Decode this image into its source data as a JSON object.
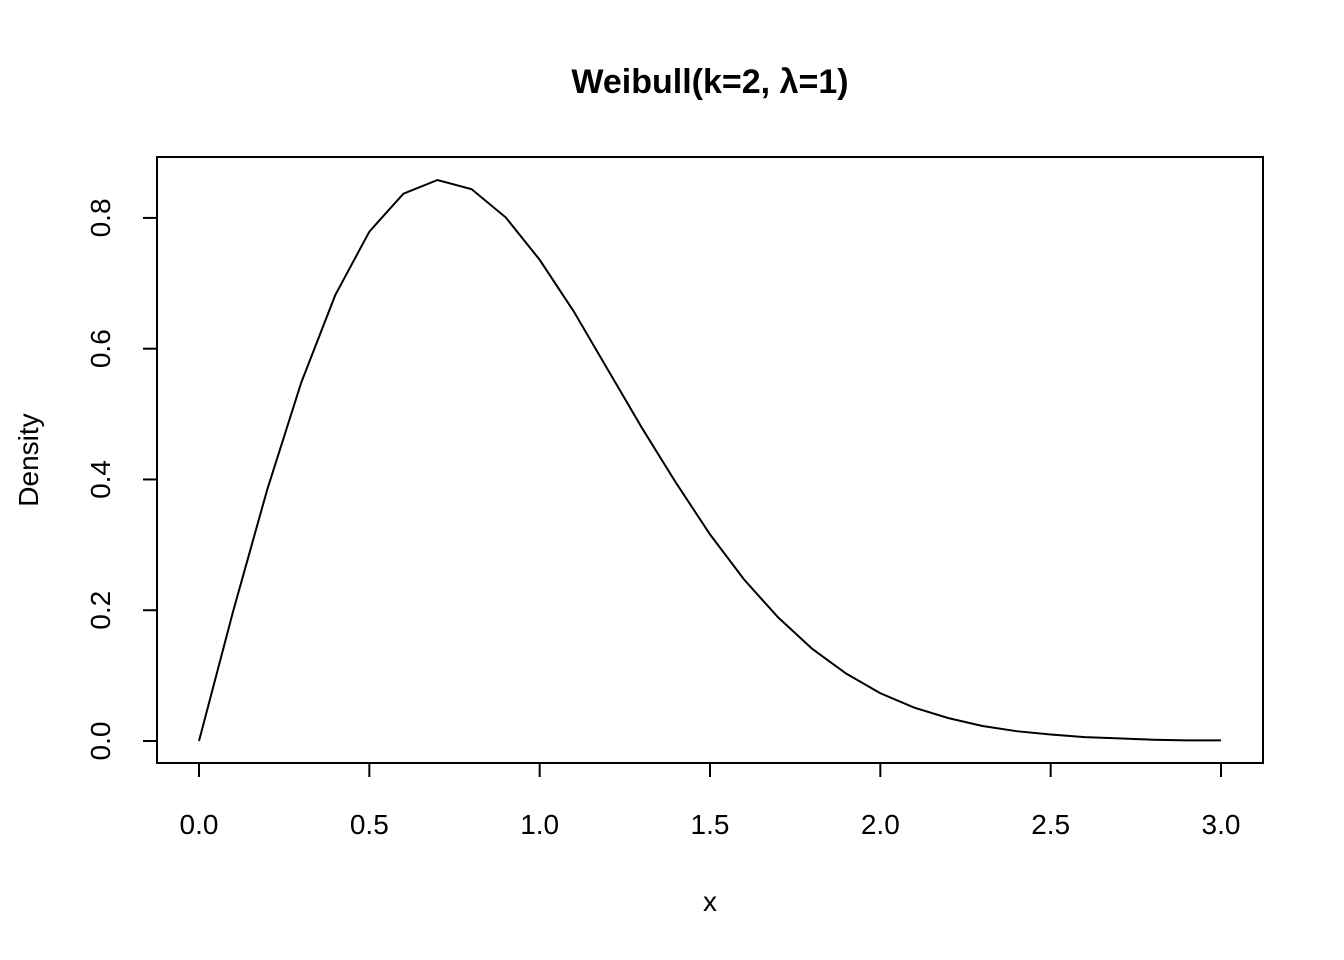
{
  "chart_data": {
    "type": "line",
    "title": "Weibull(k=2, λ=1)",
    "xlabel": "x",
    "ylabel": "Density",
    "xlim": [
      0,
      3
    ],
    "ylim": [
      0,
      0.858
    ],
    "x_ticks": [
      0.0,
      0.5,
      1.0,
      1.5,
      2.0,
      2.5,
      3.0
    ],
    "x_tick_labels": [
      "0.0",
      "0.5",
      "1.0",
      "1.5",
      "2.0",
      "2.5",
      "3.0"
    ],
    "y_ticks": [
      0.0,
      0.2,
      0.4,
      0.6,
      0.8
    ],
    "y_tick_labels": [
      "0.0",
      "0.2",
      "0.4",
      "0.6",
      "0.8"
    ],
    "grid": false,
    "legend": "none",
    "series": [
      {
        "color": "#000000",
        "x": [
          0.0,
          0.1,
          0.2,
          0.3,
          0.4,
          0.5,
          0.6,
          0.7,
          0.8,
          0.9,
          1.0,
          1.1,
          1.2,
          1.3,
          1.4,
          1.5,
          1.6,
          1.7,
          1.8,
          1.9,
          2.0,
          2.1,
          2.2,
          2.3,
          2.4,
          2.5,
          2.6,
          2.7,
          2.8,
          2.9,
          3.0
        ],
        "y": [
          0.0,
          0.198,
          0.384,
          0.548,
          0.682,
          0.779,
          0.837,
          0.858,
          0.844,
          0.801,
          0.736,
          0.657,
          0.568,
          0.479,
          0.395,
          0.316,
          0.247,
          0.189,
          0.141,
          0.103,
          0.073,
          0.051,
          0.035,
          0.023,
          0.015,
          0.01,
          0.006,
          0.004,
          0.002,
          0.001,
          0.001
        ]
      }
    ]
  }
}
